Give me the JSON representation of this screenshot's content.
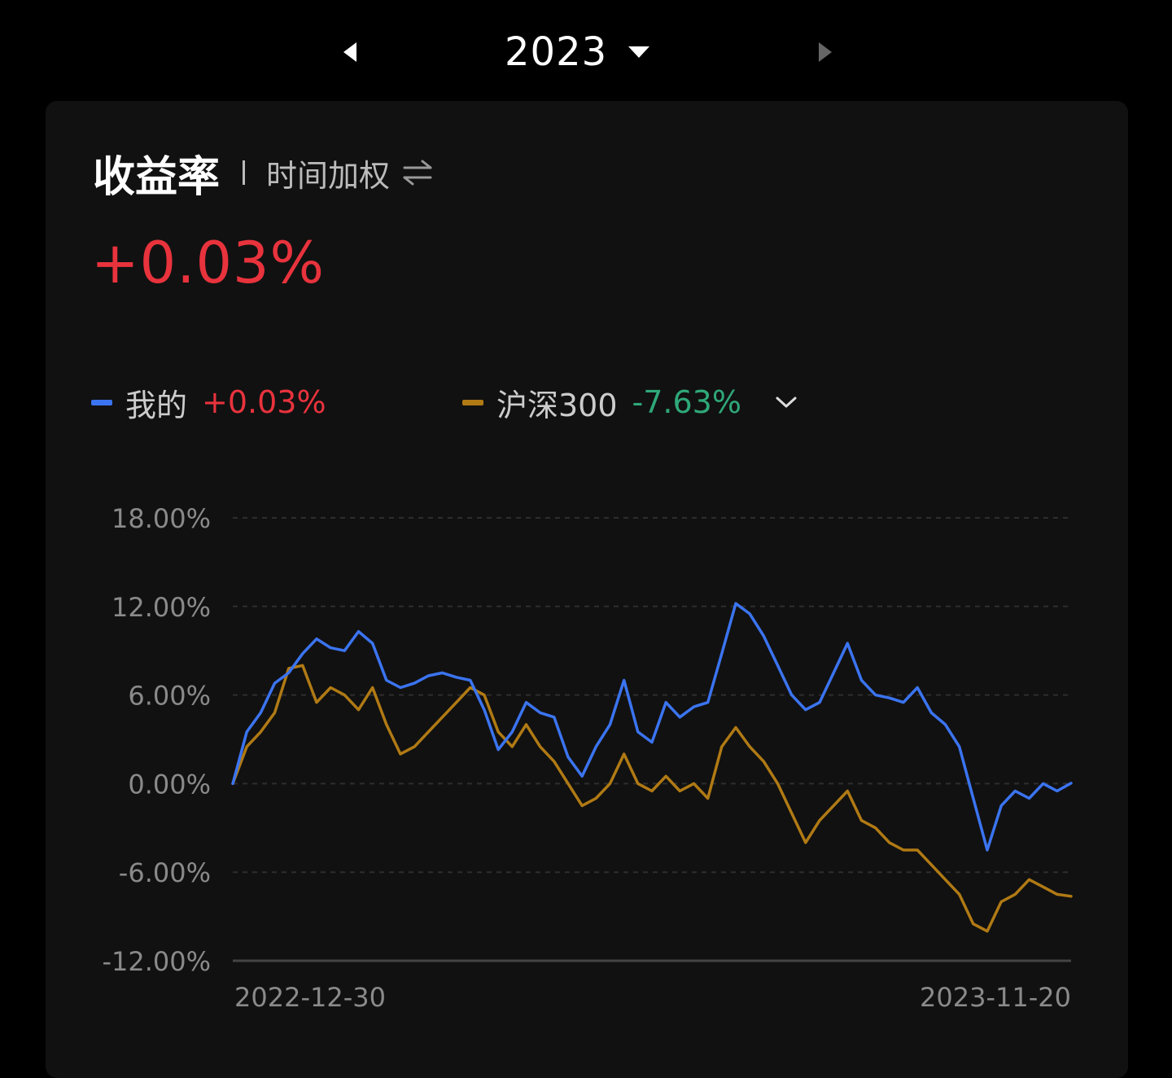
{
  "year_selector": {
    "year": "2023",
    "prev_icon": "caret-left-icon",
    "next_icon": "caret-right-icon",
    "dropdown_icon": "caret-down-icon"
  },
  "card": {
    "title": "收益率",
    "subtitle": "时间加权",
    "swap_icon": "swap-arrows-icon",
    "total_return": "+0.03%"
  },
  "legend": {
    "mine": {
      "name": "我的",
      "value": "+0.03%",
      "color": "#3b74f0",
      "value_color": "#e8333d"
    },
    "benchmark": {
      "name": "沪深300",
      "value": "-7.63%",
      "color": "#b07a14",
      "value_color": "#2fa879",
      "expand_icon": "chevron-down-icon"
    }
  },
  "chart_data": {
    "type": "line",
    "x_start_label": "2022-12-30",
    "x_end_label": "2023-11-20",
    "ylim": [
      -12,
      18
    ],
    "yticks": [
      "18.00%",
      "12.00%",
      "6.00%",
      "0.00%",
      "-6.00%",
      "-12.00%"
    ],
    "ytick_values": [
      18,
      12,
      6,
      0,
      -6,
      -12
    ],
    "grid": true,
    "series": [
      {
        "name": "我的",
        "color": "#3b74f0",
        "values": [
          0.0,
          3.5,
          4.8,
          6.8,
          7.5,
          8.8,
          9.8,
          9.2,
          9.0,
          10.3,
          9.5,
          7.0,
          6.5,
          6.8,
          7.3,
          7.5,
          7.2,
          7.0,
          5.0,
          2.3,
          3.5,
          5.5,
          4.8,
          4.5,
          1.8,
          0.5,
          2.5,
          4.0,
          7.0,
          3.5,
          2.8,
          5.5,
          4.5,
          5.2,
          5.5,
          8.8,
          12.2,
          11.5,
          10.0,
          8.0,
          6.0,
          5.0,
          5.5,
          7.5,
          9.5,
          7.0,
          6.0,
          5.8,
          5.5,
          6.5,
          4.8,
          4.0,
          2.5,
          -1.0,
          -4.5,
          -1.5,
          -0.5,
          -1.0,
          0.0,
          -0.5,
          0.03
        ]
      },
      {
        "name": "沪深300",
        "color": "#b07a14",
        "values": [
          0.0,
          2.5,
          3.5,
          4.8,
          7.8,
          8.0,
          5.5,
          6.5,
          6.0,
          5.0,
          6.5,
          4.0,
          2.0,
          2.5,
          3.5,
          4.5,
          5.5,
          6.5,
          6.0,
          3.5,
          2.5,
          4.0,
          2.5,
          1.5,
          0.0,
          -1.5,
          -1.0,
          0.0,
          2.0,
          0.0,
          -0.5,
          0.5,
          -0.5,
          0.0,
          -1.0,
          2.5,
          3.8,
          2.5,
          1.5,
          0.0,
          -2.0,
          -4.0,
          -2.5,
          -1.5,
          -0.5,
          -2.5,
          -3.0,
          -4.0,
          -4.5,
          -4.5,
          -5.5,
          -6.5,
          -7.5,
          -9.5,
          -10.0,
          -8.0,
          -7.5,
          -6.5,
          -7.0,
          -7.5,
          -7.63
        ]
      }
    ]
  }
}
